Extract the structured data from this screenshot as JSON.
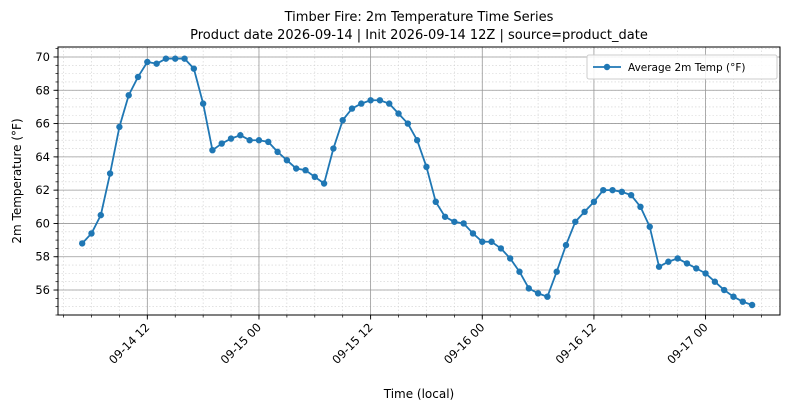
{
  "chart_data": {
    "type": "line",
    "title": "Timber Fire: 2m Temperature Time Series",
    "subtitle": "Product date 2026-09-14 | Init 2026-09-14 12Z | source=product_date",
    "xlabel": "Time (local)",
    "ylabel": "2m Temperature (°F)",
    "x_start": "2026-09-14 05:00",
    "x_step_hours": 1,
    "xlim": [
      "2026-09-14 02:24",
      "2026-09-17 08:00"
    ],
    "ylim": [
      54.5,
      70.6
    ],
    "yticks": [
      56,
      58,
      60,
      62,
      64,
      66,
      68,
      70
    ],
    "xticks": [
      {
        "value": "2026-09-14 12:00",
        "label": "09-14 12"
      },
      {
        "value": "2026-09-15 00:00",
        "label": "09-15 00"
      },
      {
        "value": "2026-09-15 12:00",
        "label": "09-15 12"
      },
      {
        "value": "2026-09-16 00:00",
        "label": "09-16 00"
      },
      {
        "value": "2026-09-16 12:00",
        "label": "09-16 12"
      },
      {
        "value": "2026-09-17 00:00",
        "label": "09-17 00"
      }
    ],
    "grid": true,
    "legend_position": "top-right",
    "series": [
      {
        "name": "Average 2m Temp (°F)",
        "color": "#1f77b4",
        "marker": "circle",
        "values": [
          58.8,
          59.4,
          60.5,
          63.0,
          65.8,
          67.7,
          68.8,
          69.7,
          69.6,
          69.9,
          69.9,
          69.9,
          69.3,
          67.2,
          64.4,
          64.8,
          65.1,
          65.3,
          65.0,
          65.0,
          64.9,
          64.3,
          63.8,
          63.3,
          63.2,
          62.8,
          62.4,
          64.5,
          66.2,
          66.9,
          67.2,
          67.4,
          67.4,
          67.2,
          66.6,
          66.0,
          65.0,
          63.4,
          61.3,
          60.4,
          60.1,
          60.0,
          59.4,
          58.9,
          58.9,
          58.5,
          57.9,
          57.1,
          56.1,
          55.8,
          55.6,
          57.1,
          58.7,
          60.1,
          60.7,
          61.3,
          62.0,
          62.0,
          61.9,
          61.7,
          61.0,
          59.8,
          57.4,
          57.7,
          57.9,
          57.6,
          57.3,
          57.0,
          56.5,
          56.0,
          55.6,
          55.3,
          55.1
        ]
      }
    ]
  }
}
